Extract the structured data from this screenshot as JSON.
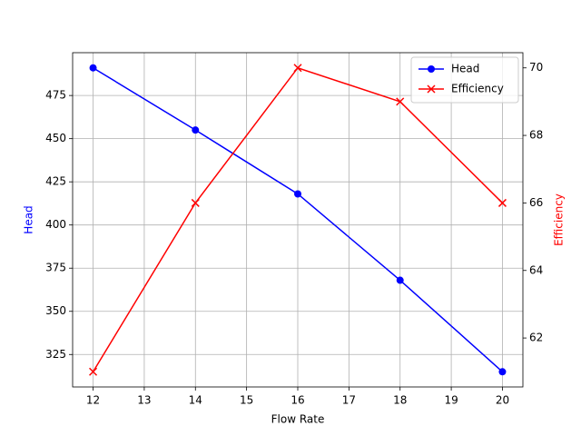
{
  "chart_data": {
    "type": "line",
    "x": [
      12,
      14,
      16,
      18,
      20
    ],
    "xlabel": "Flow Rate",
    "ylabel": "Head",
    "y2label": "Efficiency",
    "series": [
      {
        "name": "Head",
        "color": "#0000ff",
        "marker": "circle",
        "axis": "y",
        "values": [
          491,
          455,
          418,
          368,
          315
        ]
      },
      {
        "name": "Efficiency",
        "color": "#ff0000",
        "marker": "x",
        "axis": "y2",
        "values": [
          61,
          66,
          70,
          69,
          66
        ]
      }
    ],
    "xlim": [
      11.6,
      20.4
    ],
    "xticks": [
      12,
      13,
      14,
      15,
      16,
      17,
      18,
      19,
      20
    ],
    "ylim": [
      306.2,
      499.8
    ],
    "yticks": [
      325,
      350,
      375,
      400,
      425,
      450,
      475
    ],
    "y2lim": [
      60.55,
      70.45
    ],
    "y2ticks": [
      62,
      64,
      66,
      68,
      70
    ],
    "grid": true,
    "legend": "upper right"
  }
}
